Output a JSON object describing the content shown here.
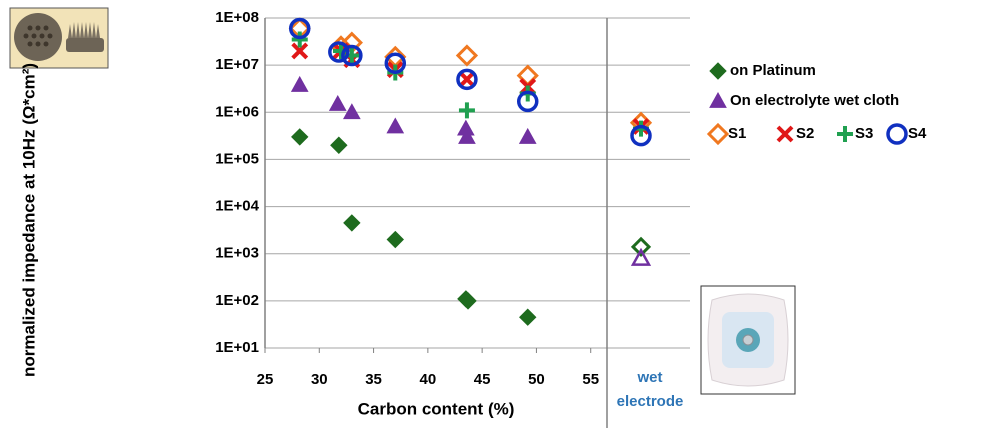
{
  "chart_data": {
    "type": "scatter",
    "x_label": "Carbon content (%)",
    "y_label": "normalized impedance at 10Hz (Ω*cm²)",
    "extra_category": "wet electrode",
    "yscale": "log",
    "xlim": [
      25,
      56.5
    ],
    "ylim": [
      10,
      100000000
    ],
    "xticks": [
      25,
      30,
      35,
      40,
      45,
      50,
      55
    ],
    "yticks": [
      {
        "value": 100000000,
        "label": "1E+08"
      },
      {
        "value": 10000000,
        "label": "1E+07"
      },
      {
        "value": 1000000,
        "label": "1E+06"
      },
      {
        "value": 100000,
        "label": "1E+05"
      },
      {
        "value": 10000,
        "label": "1E+04"
      },
      {
        "value": 1000,
        "label": "1E+03"
      },
      {
        "value": 100,
        "label": "1E+02"
      },
      {
        "value": 10,
        "label": "1E+01"
      }
    ],
    "grid": true,
    "legend": "right",
    "series": [
      {
        "name": "on Platinum",
        "color": "#1e6b1e",
        "marker": "diamond-filled",
        "x": [
          28.2,
          31.8,
          33,
          37,
          43.5,
          43.7,
          49.2
        ],
        "values": [
          300000,
          200000,
          4500,
          2000,
          110,
          100,
          45
        ],
        "wet_value": 1400
      },
      {
        "name": "On electrolyte wet cloth",
        "color": "#7030a0",
        "marker": "triangle-filled",
        "x": [
          28.2,
          31.7,
          33,
          37,
          43.5,
          43.6,
          49.2
        ],
        "values": [
          3800000,
          1500000,
          1000000,
          500000,
          450000,
          300000,
          300000
        ],
        "wet_value": 800
      },
      {
        "name": "S1",
        "color": "#f07820",
        "marker": "diamond-open",
        "x": [
          28.2,
          32,
          33,
          37,
          43.6,
          49.2
        ],
        "values": [
          60000000,
          25000000,
          30000000,
          15000000,
          16000000,
          6000000
        ],
        "wet_value": 600000
      },
      {
        "name": "S2",
        "color": "#e01818",
        "marker": "x",
        "x": [
          28.2,
          32,
          33,
          37,
          43.6,
          49.2
        ],
        "values": [
          20000000,
          20000000,
          13000000,
          8000000,
          5000000,
          3500000
        ],
        "wet_value": 500000
      },
      {
        "name": "S3",
        "color": "#20a050",
        "marker": "plus",
        "x": [
          28.2,
          32,
          33,
          37,
          43.6,
          49.2
        ],
        "values": [
          35000000,
          20000000,
          16000000,
          7000000,
          1100000,
          2500000
        ],
        "wet_value": 450000
      },
      {
        "name": "S4",
        "color": "#1030c0",
        "marker": "circle-open",
        "x": [
          28.2,
          31.8,
          33,
          37,
          43.6,
          49.2
        ],
        "values": [
          60000000,
          19000000,
          16000000,
          11000000,
          5000000,
          1700000
        ],
        "wet_value": 320000
      }
    ]
  }
}
